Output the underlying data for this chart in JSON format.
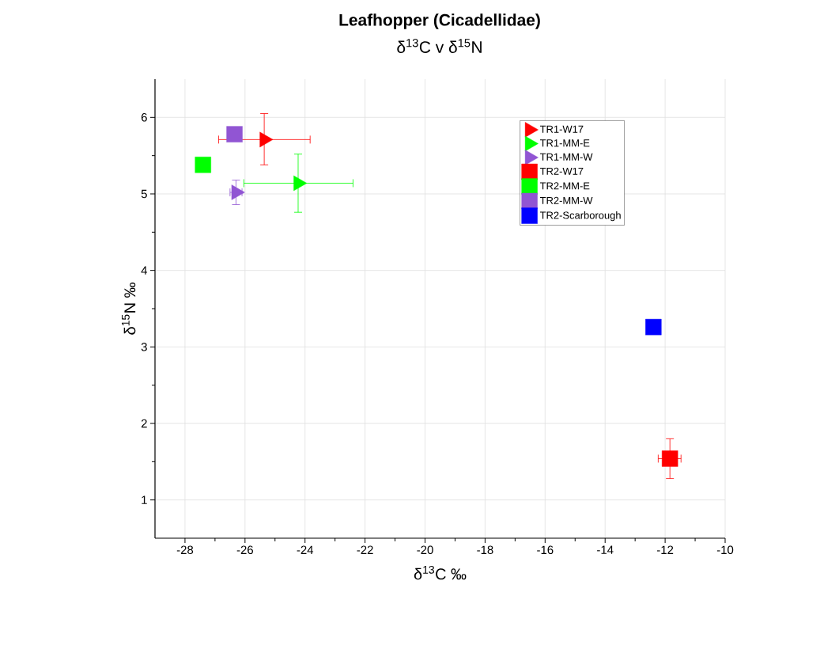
{
  "chart_data": {
    "type": "scatter",
    "title": "Leafhopper (Cicadellidae)",
    "subtitle": "δ$^{13}$C v δ$^{15}$N",
    "xlabel": "δ$^{13}$C ‰",
    "ylabel": "δ$^{15}$N ‰",
    "xlim": [
      -29,
      -10
    ],
    "ylim": [
      0.5,
      6.5
    ],
    "xticks": [
      -28,
      -26,
      -24,
      -22,
      -20,
      -18,
      -16,
      -14,
      -12,
      -10
    ],
    "yticks": [
      1,
      2,
      3,
      4,
      5,
      6
    ],
    "grid": true,
    "legend": "top right",
    "series": [
      {
        "name": "TR1-W17",
        "color": "#ff0000",
        "marker": "triangle",
        "x": [
          -25.36
        ],
        "values": [
          5.71
        ],
        "errors": [
          [
            5.38,
            6.05
          ]
        ],
        "xerrors": [
          [
            -26.88,
            -23.83
          ]
        ]
      },
      {
        "name": "TR1-MM-E",
        "color": "#00ff00",
        "marker": "triangle",
        "x": [
          -24.23
        ],
        "values": [
          5.14
        ],
        "errors": [
          [
            4.76,
            5.52
          ]
        ],
        "xerrors": [
          [
            -26.04,
            -22.4
          ]
        ]
      },
      {
        "name": "TR1-MM-W",
        "color": "#9155d3",
        "marker": "triangle",
        "x": [
          -26.3
        ],
        "values": [
          5.02
        ],
        "errors": [
          [
            4.86,
            5.18
          ]
        ],
        "xerrors": [
          0.2
        ]
      },
      {
        "name": "TR2-W17",
        "color": "#ff0000",
        "marker": "square",
        "x": [
          -11.84
        ],
        "values": [
          1.54
        ],
        "errors": [
          [
            1.28,
            1.8
          ]
        ],
        "xerrors": [
          [
            -12.23,
            -11.47
          ]
        ]
      },
      {
        "name": "TR2-MM-E",
        "color": "#00ff00",
        "marker": "square",
        "x": [
          -27.4
        ],
        "values": [
          5.38
        ]
      },
      {
        "name": "TR2-MM-W",
        "color": "#9155d3",
        "marker": "square",
        "x": [
          -26.35
        ],
        "values": [
          5.78
        ]
      },
      {
        "name": "TR2-Scarborough",
        "color": "#0000ff",
        "marker": "square",
        "x": [
          -12.39
        ],
        "values": [
          3.26
        ]
      }
    ]
  }
}
